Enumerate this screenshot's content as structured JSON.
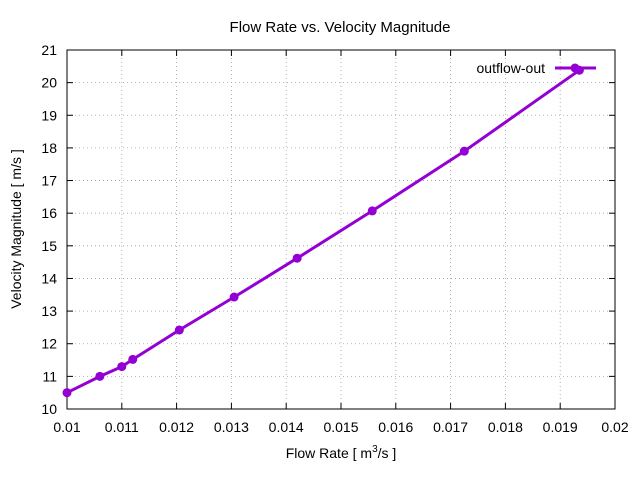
{
  "chart_data": {
    "type": "line",
    "title": "Flow Rate vs. Velocity Magnitude",
    "xlabel_parts": [
      "Flow Rate [ m",
      "3",
      "/s ]"
    ],
    "ylabel": "Velocity Magnitude [ m/s ]",
    "xlim": [
      0.01,
      0.02
    ],
    "ylim": [
      10,
      21
    ],
    "x_ticks": [
      "0.01",
      "0.011",
      "0.012",
      "0.013",
      "0.014",
      "0.015",
      "0.016",
      "0.017",
      "0.018",
      "0.019",
      "0.02"
    ],
    "y_ticks": [
      "10",
      "11",
      "12",
      "13",
      "14",
      "15",
      "16",
      "17",
      "18",
      "19",
      "20",
      "21"
    ],
    "grid": true,
    "legend_position": "top-right",
    "series": [
      {
        "name": "outflow-out",
        "color": "#9400d3",
        "x": [
          0.01,
          0.0106,
          0.011,
          0.0112,
          0.01205,
          0.01305,
          0.0142,
          0.01557,
          0.01725,
          0.01935
        ],
        "y": [
          10.5,
          11.0,
          11.3,
          11.52,
          12.42,
          13.43,
          14.62,
          16.07,
          17.9,
          20.38
        ]
      }
    ]
  }
}
